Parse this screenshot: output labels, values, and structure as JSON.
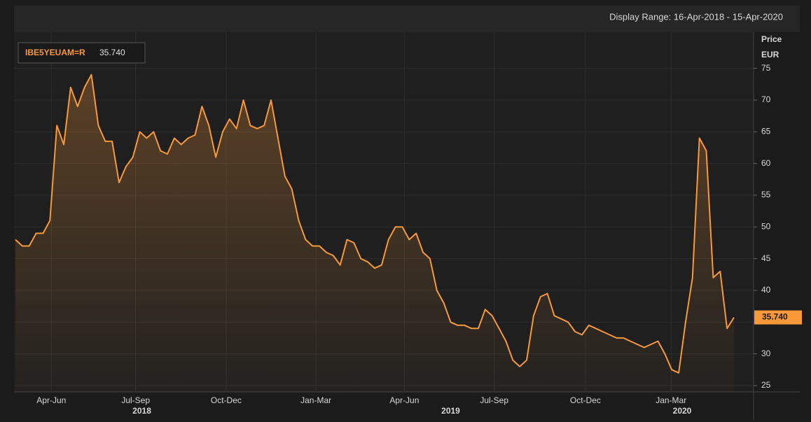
{
  "chart_data": {
    "type": "line",
    "display_range": "Display Range: 16-Apr-2018 - 15-Apr-2020",
    "y_label": "Price",
    "y_unit": "EUR",
    "series": [
      {
        "name": "IBE5YEUAM=R",
        "last_label": "35.740",
        "color": "#f7993a",
        "values": [
          48,
          47,
          47,
          49,
          49,
          51,
          66,
          63,
          72,
          69,
          72,
          74,
          66,
          63.5,
          63.5,
          57,
          59.5,
          61,
          65,
          64,
          65,
          62,
          61.5,
          64,
          63,
          64,
          64.5,
          69,
          66,
          61,
          65,
          67,
          65.5,
          70,
          66,
          65.5,
          66,
          70,
          64,
          58,
          56,
          51,
          48,
          47,
          47,
          46,
          45.5,
          44,
          48,
          47.5,
          45,
          44.5,
          43.5,
          44,
          48,
          50,
          50,
          48,
          49,
          46,
          45,
          40,
          38,
          35,
          34.5,
          34.5,
          34,
          34,
          37,
          36,
          34,
          32,
          29,
          28,
          29,
          36,
          39,
          39.5,
          36,
          35.5,
          35,
          33.5,
          33,
          34.5,
          34,
          33.5,
          33,
          32.5,
          32.5,
          32,
          31.5,
          31,
          31.5,
          32,
          30,
          27.5,
          27,
          35,
          42,
          64,
          62,
          42,
          43,
          34,
          35.74
        ]
      }
    ],
    "ylim": [
      24,
      80.7
    ],
    "yticks": [
      25,
      30,
      35,
      40,
      45,
      50,
      55,
      60,
      65,
      70,
      75
    ],
    "xlim": [
      0,
      104
    ],
    "xticks": [
      {
        "value": 5.2,
        "label": "Apr-Jun"
      },
      {
        "value": 17.4,
        "label": "Jul-Sep"
      },
      {
        "value": 30.5,
        "label": "Oct-Dec"
      },
      {
        "value": 43.5,
        "label": "Jan-Mar"
      },
      {
        "value": 56.3,
        "label": "Apr-Jun"
      },
      {
        "value": 69.3,
        "label": "Jul-Sep"
      },
      {
        "value": 82.5,
        "label": "Oct-Dec"
      },
      {
        "value": 94.9,
        "label": "Jan-Mar"
      }
    ],
    "year_ticks": [
      {
        "value": 18.3,
        "label": "2018"
      },
      {
        "value": 63,
        "label": "2019"
      },
      {
        "value": 96.5,
        "label": "2020"
      }
    ],
    "grid": true
  }
}
